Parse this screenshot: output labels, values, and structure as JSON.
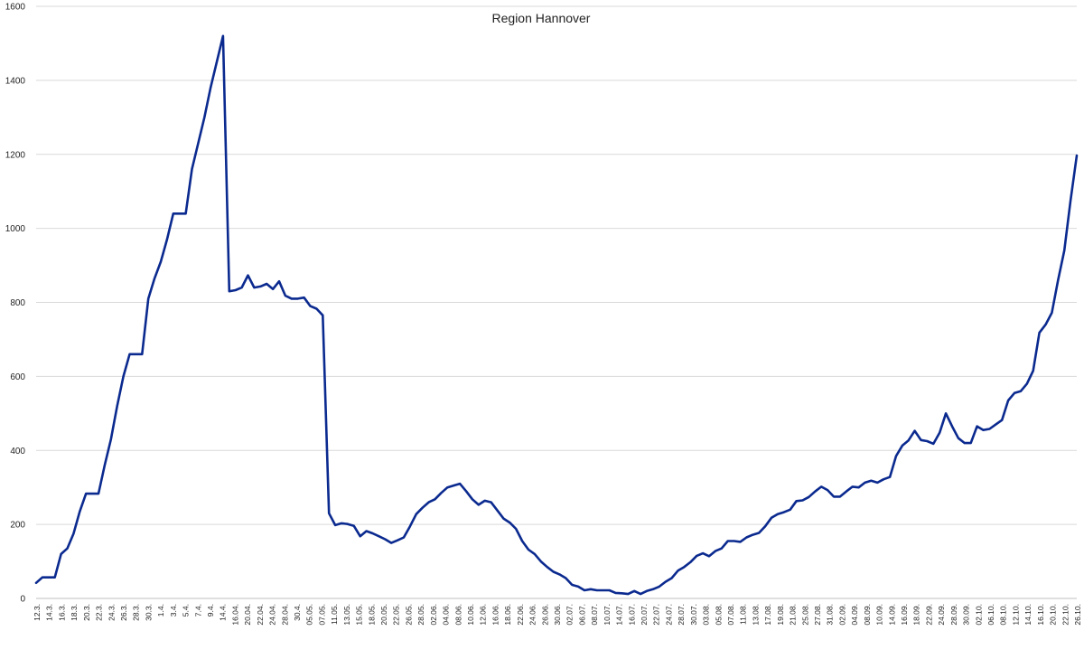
{
  "chart_data": {
    "type": "line",
    "title": "Region Hannover",
    "xlabel": "",
    "ylabel": "",
    "ylim": [
      0,
      1600
    ],
    "yticks": [
      0,
      200,
      400,
      600,
      800,
      1000,
      1200,
      1400,
      1600
    ],
    "grid": true,
    "legend": "none",
    "line_color": "#0b2a8f",
    "x_tick_labels": [
      "12.3.",
      "14.3.",
      "16.3.",
      "18.3.",
      "20.3.",
      "22.3.",
      "24.3.",
      "26.3.",
      "28.3.",
      "30.3.",
      "1.4.",
      "3.4.",
      "5.4.",
      "7.4.",
      "9.4.",
      "14.4.",
      "16.04.",
      "20.04.",
      "22.04.",
      "24.04.",
      "28.04.",
      "30.4.",
      "05.05.",
      "07.05.",
      "11.05.",
      "13.05.",
      "15.05.",
      "18.05.",
      "20.05.",
      "22.05.",
      "26.05.",
      "28.05.",
      "02.06.",
      "04.06.",
      "08.06.",
      "10.06.",
      "12.06.",
      "16.06.",
      "18.06.",
      "22.06.",
      "24.06.",
      "26.06.",
      "30.06.",
      "02.07.",
      "06.07.",
      "08.07.",
      "10.07.",
      "14.07.",
      "16.07.",
      "20.07.",
      "22.07.",
      "24.07.",
      "28.07.",
      "30.07.",
      "03.08.",
      "05.08.",
      "07.08.",
      "11.08.",
      "13.08.",
      "17.08.",
      "19.08.",
      "21.08.",
      "25.08.",
      "27.08.",
      "31.08.",
      "02.09.",
      "04.09.",
      "08.09.",
      "10.09.",
      "14.09.",
      "16.09.",
      "18.09.",
      "22.09.",
      "24.09.",
      "28.09.",
      "30.09.",
      "02.10.",
      "06.10.",
      "08.10.",
      "12.10.",
      "14.10.",
      "16.10.",
      "20.10.",
      "22.10.",
      "26.10."
    ],
    "series": [
      {
        "values": [
          42,
          57,
          57,
          57,
          120,
          135,
          175,
          235,
          283,
          283,
          283,
          360,
          430,
          520,
          600,
          660,
          660,
          660,
          810,
          865,
          910,
          970,
          1040,
          1040,
          1040,
          1160,
          1230,
          1300,
          1380,
          1450,
          1520,
          830,
          833,
          840,
          873,
          840,
          843,
          850,
          836,
          857,
          818,
          810,
          810,
          813,
          790,
          783,
          765,
          230,
          198,
          203,
          201,
          196,
          168,
          182,
          176,
          168,
          160,
          150,
          157,
          165,
          195,
          228,
          245,
          260,
          268,
          285,
          300,
          305,
          310,
          290,
          268,
          253,
          264,
          260,
          238,
          216,
          205,
          188,
          155,
          132,
          120,
          100,
          85,
          72,
          65,
          55,
          37,
          32,
          22,
          25,
          22,
          22,
          22,
          15,
          14,
          12,
          20,
          12,
          20,
          25,
          32,
          45,
          55,
          75,
          85,
          98,
          115,
          122,
          114,
          128,
          135,
          155,
          155,
          153,
          165,
          172,
          177,
          195,
          218,
          228,
          233,
          240,
          263,
          265,
          274,
          289,
          302,
          293,
          275,
          275,
          289,
          302,
          300,
          313,
          318,
          313,
          322,
          328,
          385,
          413,
          427,
          453,
          428,
          425,
          418,
          448,
          500,
          465,
          433,
          420,
          420,
          465,
          455,
          458,
          470,
          482,
          535,
          555,
          560,
          580,
          615,
          718,
          740,
          772,
          860,
          940,
          1075,
          1197
        ]
      }
    ]
  }
}
